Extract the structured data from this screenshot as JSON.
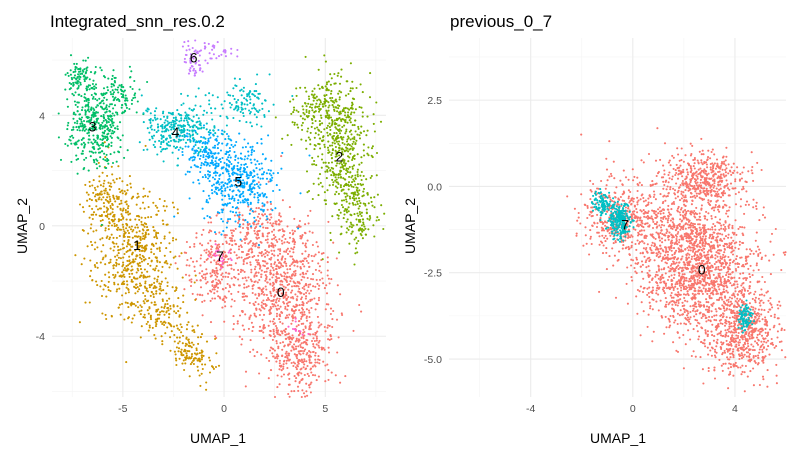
{
  "chart_data": [
    {
      "type": "scatter",
      "title": "Integrated_snn_res.0.2",
      "xlabel": "UMAP_1",
      "ylabel": "UMAP_2",
      "xlim": [
        -8.5,
        8.0
      ],
      "ylim": [
        -6.2,
        6.8
      ],
      "x_ticks": [
        -5,
        0,
        5
      ],
      "y_ticks": [
        -4,
        0,
        4
      ],
      "grid": true,
      "legend": "none",
      "series": [
        {
          "name": "0",
          "color": "#F8766D",
          "label_x": 2.8,
          "label_y": -2.4
        },
        {
          "name": "1",
          "color": "#CD9600",
          "label_x": -4.3,
          "label_y": -0.7
        },
        {
          "name": "2",
          "color": "#7CAE00",
          "label_x": 5.7,
          "label_y": 2.5
        },
        {
          "name": "3",
          "color": "#00BE67",
          "label_x": -6.5,
          "label_y": 3.6
        },
        {
          "name": "4",
          "color": "#00BFC4",
          "label_x": -2.4,
          "label_y": 3.4
        },
        {
          "name": "5",
          "color": "#00A9FF",
          "label_x": 0.7,
          "label_y": 1.6
        },
        {
          "name": "6",
          "color": "#C77CFF",
          "label_x": -1.5,
          "label_y": 6.1
        },
        {
          "name": "7",
          "color": "#FF61CC",
          "label_x": -0.2,
          "label_y": -1.1
        }
      ]
    },
    {
      "type": "scatter",
      "title": "previous_0_7",
      "xlabel": "UMAP_1",
      "ylabel": "UMAP_2",
      "xlim": [
        -7.2,
        6.0
      ],
      "ylim": [
        -6.1,
        4.3
      ],
      "x_ticks": [
        -4,
        0,
        4
      ],
      "y_ticks": [
        2.5,
        0.0,
        -2.5,
        -5.0
      ],
      "y_tick_labels": [
        "2.5",
        "0.0",
        "-2.5",
        "-5.0"
      ],
      "grid": true,
      "legend": "none",
      "series": [
        {
          "name": "0",
          "color": "#F8766D",
          "label_x": 2.7,
          "label_y": -2.4
        },
        {
          "name": "7",
          "color": "#00BFC4",
          "label_x": -0.3,
          "label_y": -1.1
        }
      ]
    }
  ]
}
